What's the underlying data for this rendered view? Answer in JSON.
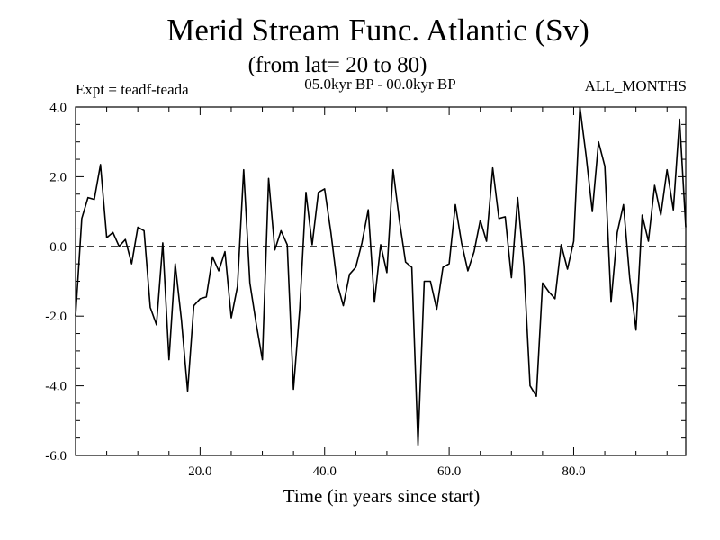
{
  "chart_data": {
    "type": "line",
    "title": "Merid Stream Func. Atlantic (Sv)",
    "subtitle": "(from lat= 20 to 80)",
    "annotations": {
      "left": "Expt = teadf-teada",
      "center": "05.0kyr BP - 00.0kyr BP",
      "right": "ALL_MONTHS"
    },
    "xlabel": "Time (in years since start)",
    "ylabel": "",
    "xlim": [
      0,
      98
    ],
    "ylim": [
      -6.0,
      4.0
    ],
    "xticks": [
      20.0,
      40.0,
      60.0,
      80.0
    ],
    "xtick_labels": [
      "20.0",
      "40.0",
      "60.0",
      "80.0"
    ],
    "yticks": [
      -6.0,
      -4.0,
      -2.0,
      0.0,
      2.0,
      4.0
    ],
    "ytick_labels": [
      "-6.0",
      "-4.0",
      "-2.0",
      "0.0",
      "2.0",
      "4.0"
    ],
    "reference_line": 0.0,
    "series": [
      {
        "name": "Merid Stream Func. Atlantic",
        "color": "#000000",
        "x": [
          0,
          1,
          2,
          3,
          4,
          5,
          6,
          7,
          8,
          9,
          10,
          11,
          12,
          13,
          14,
          15,
          16,
          17,
          18,
          19,
          20,
          21,
          22,
          23,
          24,
          25,
          26,
          27,
          28,
          29,
          30,
          31,
          32,
          33,
          34,
          35,
          36,
          37,
          38,
          39,
          40,
          41,
          42,
          43,
          44,
          45,
          46,
          47,
          48,
          49,
          50,
          51,
          52,
          53,
          54,
          55,
          56,
          57,
          58,
          59,
          60,
          61,
          62,
          63,
          64,
          65,
          66,
          67,
          68,
          69,
          70,
          71,
          72,
          73,
          74,
          75,
          76,
          77,
          78,
          79,
          80,
          81,
          82,
          83,
          84,
          85,
          86,
          87,
          88,
          89,
          90,
          91,
          92,
          93,
          94,
          95,
          96,
          97,
          98
        ],
        "values": [
          -2.0,
          0.8,
          1.4,
          1.35,
          2.35,
          0.25,
          0.4,
          0.0,
          0.2,
          -0.5,
          0.55,
          0.45,
          -1.75,
          -2.25,
          0.1,
          -3.25,
          -0.5,
          -2.1,
          -4.15,
          -1.7,
          -1.5,
          -1.45,
          -0.3,
          -0.7,
          -0.15,
          -2.05,
          -1.15,
          2.2,
          -1.05,
          -2.2,
          -3.25,
          1.95,
          -0.1,
          0.45,
          0.05,
          -4.1,
          -1.8,
          1.55,
          0.05,
          1.55,
          1.65,
          0.4,
          -1.05,
          -1.7,
          -0.8,
          -0.6,
          0.1,
          1.05,
          -1.6,
          0.05,
          -0.75,
          2.2,
          0.75,
          -0.45,
          -0.6,
          -5.7,
          -1.0,
          -1.0,
          -1.8,
          -0.6,
          -0.5,
          1.2,
          0.1,
          -0.7,
          -0.15,
          0.75,
          0.15,
          2.25,
          0.8,
          0.85,
          -0.9,
          1.4,
          -0.55,
          -4.0,
          -4.3,
          -1.05,
          -1.3,
          -1.5,
          0.05,
          -0.65,
          0.15,
          4.0,
          2.6,
          1.0,
          3.0,
          2.3,
          -1.6,
          0.4,
          1.2,
          -0.9,
          -2.4,
          0.9,
          0.15,
          1.75,
          0.9,
          2.2,
          1.05,
          3.65,
          0.55
        ]
      }
    ]
  }
}
